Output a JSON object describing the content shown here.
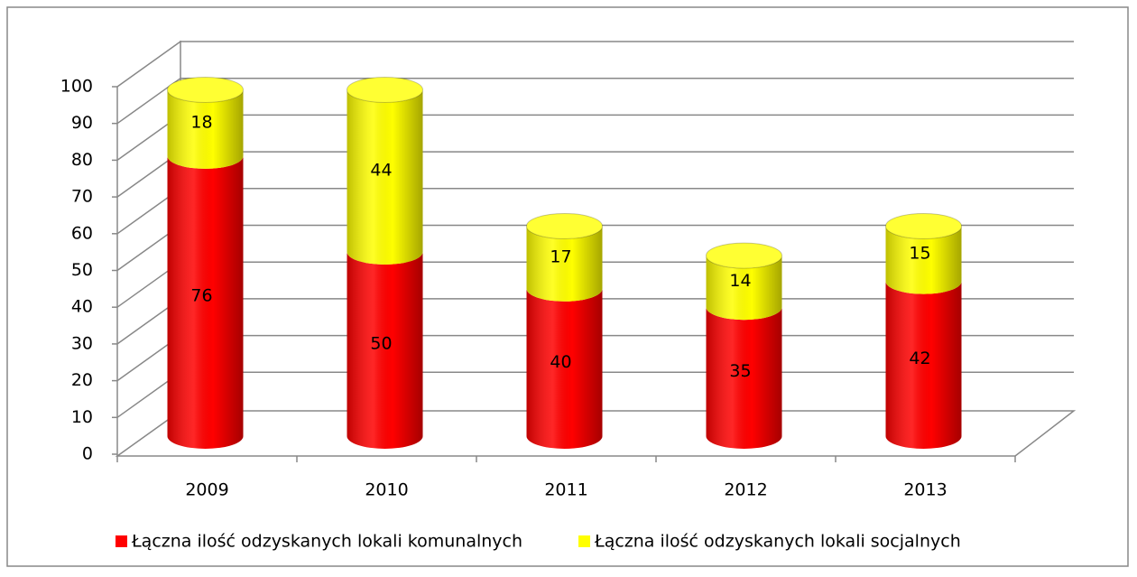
{
  "chart_data": {
    "type": "bar3d-stacked",
    "categories": [
      "2009",
      "2010",
      "2011",
      "2012",
      "2013"
    ],
    "series": [
      {
        "name": "Łączna ilość odzyskanych lokali komunalnych",
        "color": "#ff0000",
        "values": [
          76,
          50,
          40,
          35,
          42
        ]
      },
      {
        "name": "Łączna ilość odzyskanych lokali socjalnych",
        "color": "#ffff00",
        "values": [
          18,
          44,
          17,
          14,
          15
        ]
      }
    ],
    "ylim": [
      0,
      100
    ],
    "yticks": [
      0,
      10,
      20,
      30,
      40,
      50,
      60,
      70,
      80,
      90,
      100
    ],
    "grid": true,
    "legend": "bottom"
  }
}
